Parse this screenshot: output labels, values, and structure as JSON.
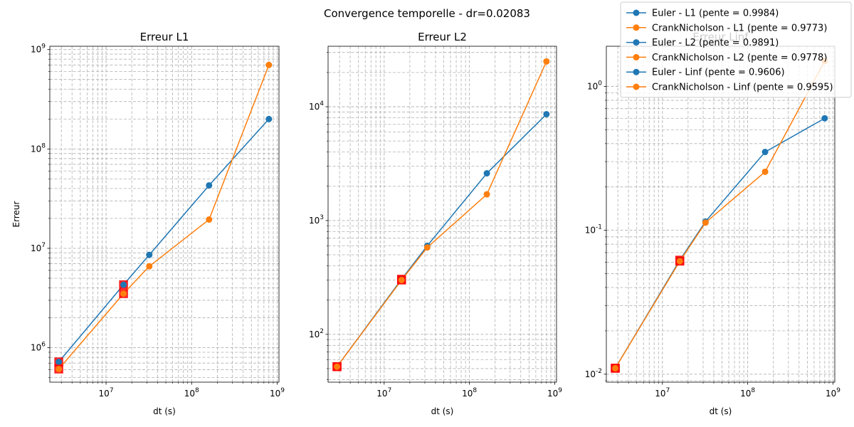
{
  "figure": {
    "suptitle": "Convergence temporelle - dr=0.02083"
  },
  "colors": {
    "euler": "#1f77b4",
    "crank": "#ff7f0e",
    "highlight_edge": "#ff0000",
    "grid": "#b0b0b0"
  },
  "legend": {
    "placement": "top-right",
    "entries": [
      {
        "label": "Euler - L1 (pente = 0.9984)",
        "color": "#1f77b4"
      },
      {
        "label": "CrankNicholson - L1 (pente = 0.9773)",
        "color": "#ff7f0e"
      },
      {
        "label": "Euler - L2 (pente = 0.9891)",
        "color": "#1f77b4"
      },
      {
        "label": "CrankNicholson - L2 (pente = 0.9778)",
        "color": "#ff7f0e"
      },
      {
        "label": "Euler - Linf (pente = 0.9606)",
        "color": "#1f77b4"
      },
      {
        "label": "CrankNicholson - Linf (pente = 0.9595)",
        "color": "#ff7f0e"
      }
    ]
  },
  "chart_data": [
    {
      "type": "line",
      "title": "Erreur L1",
      "xlabel": "dt (s)",
      "ylabel": "Erreur",
      "xscale": "log",
      "yscale": "log",
      "grid": true,
      "xlim": [
        2200000.0,
        1050000000.0
      ],
      "ylim": [
        450000,
        1080000000.0
      ],
      "xticks": [
        {
          "value": 10000000.0,
          "label": "10^7"
        },
        {
          "value": 100000000.0,
          "label": "10^8"
        },
        {
          "value": 1000000000.0,
          "label": "10^9"
        }
      ],
      "yticks": [
        {
          "value": 1000000.0,
          "label": "10^6"
        },
        {
          "value": 10000000.0,
          "label": "10^7"
        },
        {
          "value": 100000000.0,
          "label": "10^8"
        },
        {
          "value": 1000000000.0,
          "label": "10^9"
        }
      ],
      "x": [
        2800000.0,
        16000000.0,
        32000000.0,
        160000000.0,
        800000000.0
      ],
      "series": [
        {
          "name": "Euler - L1 (pente = 0.9984)",
          "color": "#1f77b4",
          "values": [
            720000,
            4300000.0,
            8600000.0,
            43000000.0,
            200000000.0
          ]
        },
        {
          "name": "CrankNicholson - L1 (pente = 0.9773)",
          "color": "#ff7f0e",
          "values": [
            610000,
            3500000.0,
            6600000.0,
            19500000.0,
            700000000.0
          ]
        }
      ],
      "highlight_x": [
        2800000.0,
        16000000.0
      ]
    },
    {
      "type": "line",
      "title": "Erreur L2",
      "xlabel": "dt (s)",
      "ylabel": "",
      "xscale": "log",
      "yscale": "log",
      "grid": true,
      "xlim": [
        2200000.0,
        1050000000.0
      ],
      "ylim": [
        38,
        34000
      ],
      "xticks": [
        {
          "value": 10000000.0,
          "label": "10^7"
        },
        {
          "value": 100000000.0,
          "label": "10^8"
        },
        {
          "value": 1000000000.0,
          "label": "10^9"
        }
      ],
      "yticks": [
        {
          "value": 100,
          "label": "10^2"
        },
        {
          "value": 1000,
          "label": "10^3"
        },
        {
          "value": 10000,
          "label": "10^4"
        }
      ],
      "x": [
        2800000.0,
        16000000.0,
        32000000.0,
        160000000.0,
        800000000.0
      ],
      "series": [
        {
          "name": "Euler - L2 (pente = 0.9891)",
          "color": "#1f77b4",
          "values": [
            52,
            305,
            600,
            2600,
            8600
          ]
        },
        {
          "name": "CrankNicholson - L2 (pente = 0.9778)",
          "color": "#ff7f0e",
          "values": [
            52,
            300,
            580,
            1700,
            25000
          ]
        }
      ],
      "highlight_x": [
        2800000.0,
        16000000.0
      ]
    },
    {
      "type": "line",
      "title": "Erreur Linf",
      "xlabel": "dt (s)",
      "ylabel": "",
      "xscale": "log",
      "yscale": "log",
      "grid": true,
      "xlim": [
        2200000.0,
        1050000000.0
      ],
      "ylim": [
        0.0088,
        1.9
      ],
      "xticks": [
        {
          "value": 10000000.0,
          "label": "10^7"
        },
        {
          "value": 100000000.0,
          "label": "10^8"
        },
        {
          "value": 1000000000.0,
          "label": "10^9"
        }
      ],
      "yticks": [
        {
          "value": 0.01,
          "label": "10^-2"
        },
        {
          "value": 0.1,
          "label": "10^-1"
        },
        {
          "value": 1,
          "label": "10^0"
        }
      ],
      "x": [
        2800000.0,
        16000000.0,
        32000000.0,
        160000000.0,
        800000000.0
      ],
      "series": [
        {
          "name": "Euler - Linf (pente = 0.9606)",
          "color": "#1f77b4",
          "values": [
            0.011,
            0.062,
            0.115,
            0.35,
            0.6
          ]
        },
        {
          "name": "CrankNicholson - Linf (pente = 0.9595)",
          "color": "#ff7f0e",
          "values": [
            0.011,
            0.061,
            0.113,
            0.255,
            1.5
          ]
        }
      ],
      "highlight_x": [
        2800000.0,
        16000000.0
      ]
    }
  ]
}
